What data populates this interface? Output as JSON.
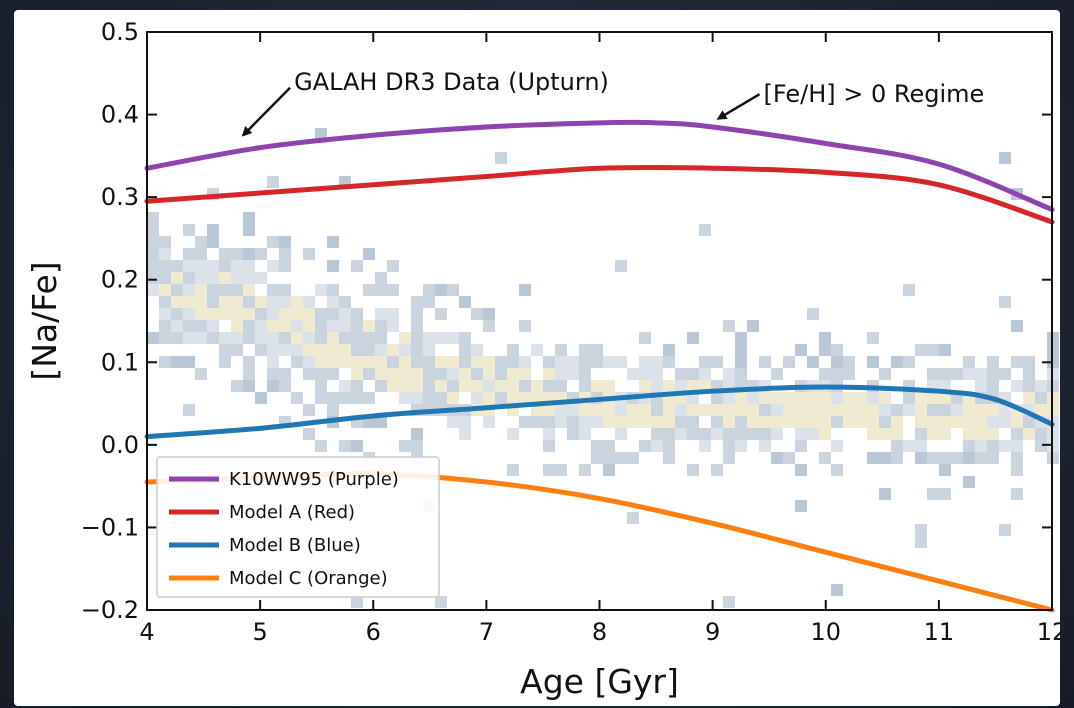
{
  "chart_data": {
    "type": "line",
    "xlabel": "Age [Gyr]",
    "ylabel": "[Na/Fe]",
    "xlim": [
      4,
      12
    ],
    "ylim": [
      -0.2,
      0.5
    ],
    "x_ticks": [
      "4",
      "5",
      "6",
      "7",
      "8",
      "9",
      "10",
      "11",
      "12"
    ],
    "y_ticks": [
      "−0.2",
      "−0.1",
      "0.0",
      "0.1",
      "0.2",
      "0.3",
      "0.4",
      "0.5"
    ],
    "grid": false,
    "legend_position": "bottom-left",
    "series": [
      {
        "name": "K10WW95 (Purple)",
        "color": "#8e44ad",
        "x": [
          4,
          5,
          6,
          7,
          8,
          8.5,
          9,
          10,
          11,
          12
        ],
        "y": [
          0.335,
          0.36,
          0.375,
          0.385,
          0.39,
          0.39,
          0.385,
          0.365,
          0.34,
          0.285
        ]
      },
      {
        "name": "Model A (Red)",
        "color": "#d62728",
        "x": [
          4,
          5,
          6,
          7,
          8,
          9,
          10,
          11,
          12
        ],
        "y": [
          0.295,
          0.305,
          0.315,
          0.325,
          0.335,
          0.335,
          0.33,
          0.315,
          0.27
        ]
      },
      {
        "name": "Model B (Blue)",
        "color": "#1f77b4",
        "x": [
          4,
          5,
          6,
          7,
          8,
          9,
          10,
          11,
          11.5,
          12
        ],
        "y": [
          0.01,
          0.02,
          0.035,
          0.045,
          0.055,
          0.065,
          0.07,
          0.065,
          0.055,
          0.025
        ]
      },
      {
        "name": "Model C (Orange)",
        "color": "#ff7f0e",
        "x": [
          4,
          5,
          6,
          7,
          8,
          9,
          10,
          11,
          12
        ],
        "y": [
          -0.045,
          -0.04,
          -0.035,
          -0.045,
          -0.065,
          -0.095,
          -0.13,
          -0.165,
          -0.2
        ]
      }
    ],
    "annotations": [
      {
        "text": "GALAH DR3 Data (Upturn)",
        "text_xy": [
          5.3,
          0.43
        ],
        "arrow_to": [
          4.85,
          0.375
        ]
      },
      {
        "text": "[Fe/H] > 0 Regime",
        "text_xy": [
          9.45,
          0.415
        ],
        "arrow_to": [
          9.05,
          0.395
        ]
      }
    ],
    "density_points": {
      "label": "GALAH DR3 Data (Upturn)",
      "colors": [
        "#aebdcf",
        "#c1ccd9",
        "#d6dde6",
        "#ece6c8"
      ],
      "trend_x": [
        4,
        5,
        6,
        7,
        8,
        9,
        10,
        11,
        12
      ],
      "trend_y": [
        0.2,
        0.16,
        0.11,
        0.07,
        0.05,
        0.045,
        0.04,
        0.04,
        0.04
      ],
      "spread": [
        0.06,
        0.07,
        0.08,
        0.07,
        0.06,
        0.06,
        0.06,
        0.06,
        0.06
      ]
    }
  }
}
